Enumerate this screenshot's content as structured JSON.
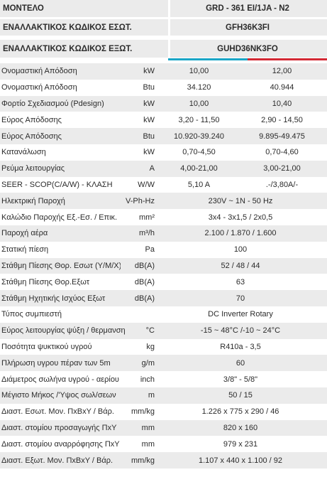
{
  "header": {
    "model_label": "ΜΟΝΤΕΛΟ",
    "model_value": "GRD - 361 EI/1JA - N2",
    "indoor_alt_label": "ΕΝΑΛΛΑΚΤΙΚΟΣ ΚΩΔΙΚΟΣ ΕΣΩΤ.",
    "indoor_alt_value": "GFH36K3FI",
    "outdoor_alt_label": "ΕΝΑΛΛΑΚΤΙΚΟΣ ΚΩΔΙΚΟΣ ΕΞΩΤ.",
    "outdoor_alt_value": "GUHD36NK3FO"
  },
  "colors": {
    "cooling": "#1aa5c6",
    "heating": "#d22833",
    "stripe": "#ebebeb"
  },
  "rows": [
    {
      "label": "Ονομαστική Απόδοση",
      "unit": "kW",
      "cool": "10,00",
      "heat": "12,00"
    },
    {
      "label": "Ονομαστική Απόδοση",
      "unit": "Btu",
      "cool": "34.120",
      "heat": "40.944"
    },
    {
      "label": "Φορτίο Σχεδιασμού (Pdesign)",
      "unit": "kW",
      "cool": "10,00",
      "heat": "10,40"
    },
    {
      "label": "Εύρος Απόδοσης",
      "unit": "kW",
      "cool": "3,20 - 11,50",
      "heat": "2,90 - 14,50"
    },
    {
      "label": "Εύρος Απόδοσης",
      "unit": "Btu",
      "cool": "10.920-39.240",
      "heat": "9.895-49.475"
    },
    {
      "label": "Κατανάλωση",
      "unit": "kW",
      "cool": "0,70-4,50",
      "heat": "0,70-4,60"
    },
    {
      "label": "Ρεύμα λειτουργίας",
      "unit": "A",
      "cool": "4,00-21,00",
      "heat": "3,00-21,00"
    },
    {
      "label": "SEER - SCOP(C/A/W) - ΚΛΑΣΗ",
      "unit": "W/W",
      "cool": "5,10 A",
      "heat": ".-/3,80A/-"
    },
    {
      "label": "Ηλεκτρική Παροχή",
      "unit": "V-Ph-Hz",
      "value": "230V ~ 1N - 50 Hz"
    },
    {
      "label": "Καλώδιο Παροχής Εξ.-Εσ. / Επικ.",
      "unit": "mm²",
      "value": "3x4 - 3x1,5 / 2x0,5"
    },
    {
      "label": "Παροχή αέρα",
      "unit": "m³/h",
      "value": "2.100 / 1.870 / 1.600"
    },
    {
      "label": "Στατική πίεση",
      "unit": "Pa",
      "value": "100"
    },
    {
      "label": "Στάθμη Πίεσης Θορ. Εσωτ (Υ/Μ/Χ)",
      "unit": "dB(A)",
      "value": "52 / 48 / 44"
    },
    {
      "label": "Στάθμη Πίεσης Θορ.Εξωτ",
      "unit": "dB(A)",
      "value": "63"
    },
    {
      "label": "Στάθμη Ηχητικής Ισχύος Εξωτ",
      "unit": "dB(A)",
      "value": "70"
    },
    {
      "label": "Τύπος συμπιεστή",
      "unit": "",
      "value": "DC Inverter Rotary"
    },
    {
      "label": "Εύρος λειτουργίας ψύξη / θερμανση",
      "unit": "°C",
      "value": "-15 ~ 48°C /-10 ~ 24°C",
      "wide": true
    },
    {
      "label": "Ποσότητα ψυκτικού υγρού",
      "unit": "kg",
      "value": "R410a - 3,5"
    },
    {
      "label": "Πλήρωση υγρου πέραν των 5m",
      "unit": "g/m",
      "value": "60"
    },
    {
      "label": "Διάμετρος σωλήνα υγρού - αερίου",
      "unit": "inch",
      "value": "3/8\" - 5/8\""
    },
    {
      "label": "Μέγιστο Μήκος /'Υψος σωλ/σεων",
      "unit": "m",
      "value": "50 / 15"
    },
    {
      "label": "Διαστ. Εσωτ. Μον. ΠxΒxY / Βάρ.",
      "unit": "mm/kg",
      "value": "1.226 x 775 x 290 / 46"
    },
    {
      "label": "Διαστ. στομίου προσαγωγής ΠxY",
      "unit": "mm",
      "value": "820 x 160"
    },
    {
      "label": "Διαστ. στομίου αναρρόφησης ΠxY",
      "unit": "mm",
      "value": "979 x 231"
    },
    {
      "label": "Διαστ. Εξωτ. Μον. ΠxΒxY / Βάρ.",
      "unit": "mm/kg",
      "value": "1.107 x 440 x 1.100 / 92"
    }
  ]
}
